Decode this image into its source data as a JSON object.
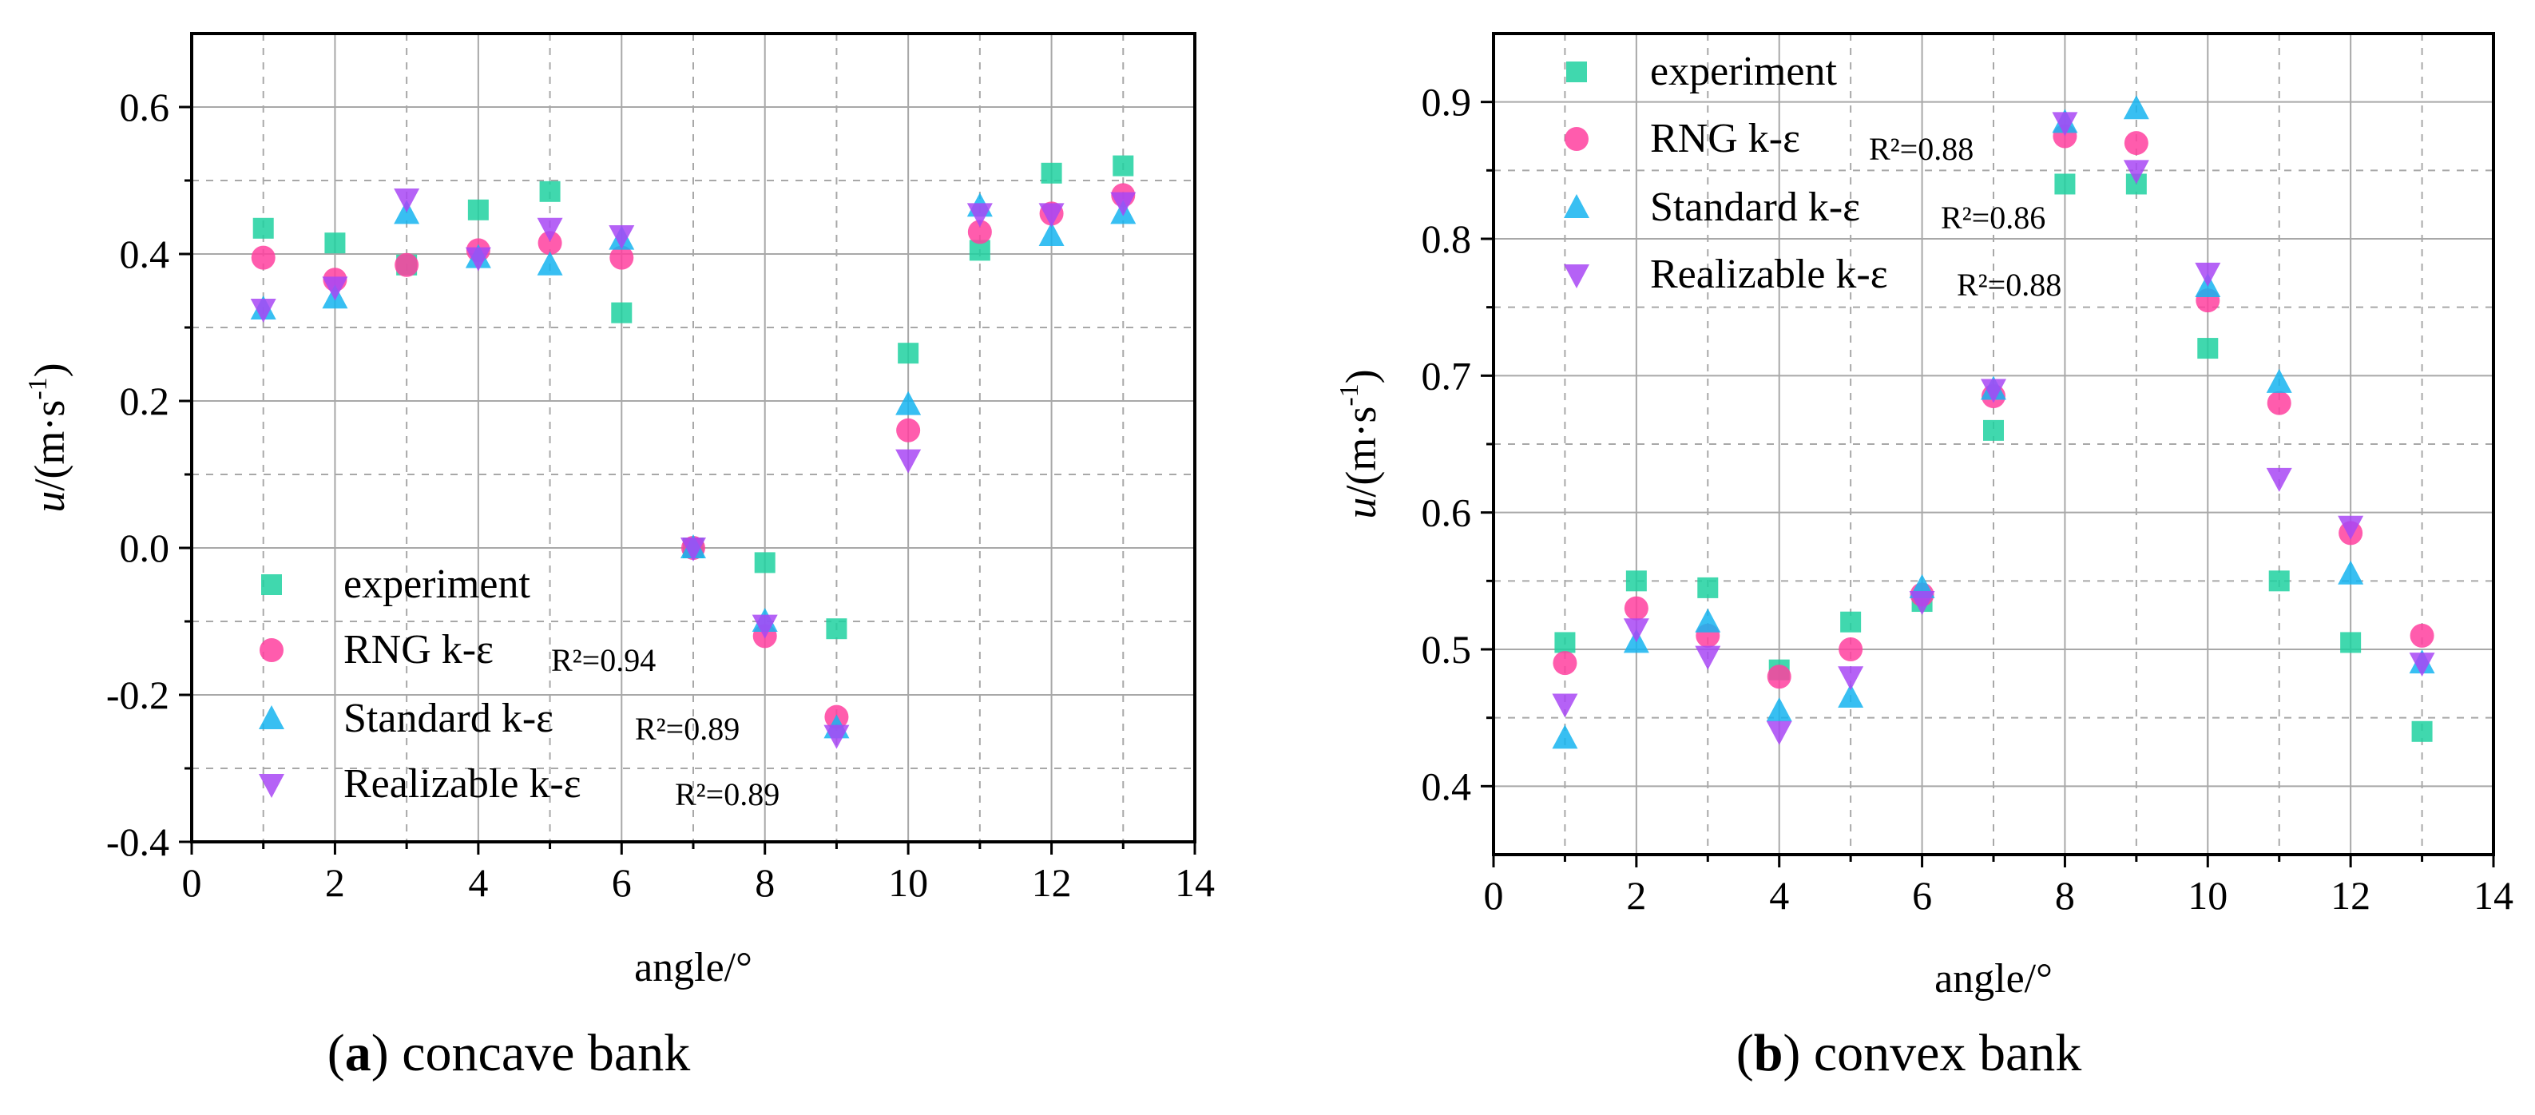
{
  "figure": {
    "panels": [
      {
        "caption_letter": "a",
        "caption_open": "(",
        "caption_close": ")",
        "caption_text": " concave bank"
      },
      {
        "caption_letter": "b",
        "caption_open": "(",
        "caption_close": ")",
        "caption_text": " convex bank"
      }
    ]
  },
  "colors": {
    "experiment": "#1fd1a0",
    "rng": "#ff3f9f",
    "standard": "#15b4f0",
    "realizable": "#a847f5",
    "grid": "#a8a8a8",
    "axis": "#000000"
  },
  "chart_data": [
    {
      "type": "scatter",
      "panel_caption": "(a) concave bank",
      "xlabel": "angle/°",
      "ylabel_main": "u",
      "ylabel_units": "/(m·s",
      "ylabel_sup": "-1",
      "ylabel_close": ")",
      "xlim": [
        0,
        14
      ],
      "ylim": [
        -0.4,
        0.7
      ],
      "xticks": [
        0,
        2,
        4,
        6,
        8,
        10,
        12,
        14
      ],
      "xtick_labels": [
        "0",
        "2",
        "4",
        "6",
        "8",
        "10",
        "12",
        "14"
      ],
      "yticks": [
        -0.4,
        -0.2,
        0.0,
        0.2,
        0.4,
        0.6
      ],
      "ytick_labels": [
        "-0.4",
        "-0.2",
        "0.0",
        "0.2",
        "0.4",
        "0.6"
      ],
      "legend_position": "bottom-left",
      "x": [
        1,
        2,
        3,
        4,
        5,
        6,
        7,
        8,
        9,
        10,
        11,
        12,
        13
      ],
      "series": [
        {
          "key": "experiment",
          "name": "experiment",
          "r2": "",
          "marker": "square",
          "values": [
            0.435,
            0.415,
            0.385,
            0.46,
            0.485,
            0.32,
            0.0,
            -0.02,
            -0.11,
            0.265,
            0.405,
            0.51,
            0.52
          ]
        },
        {
          "key": "rng",
          "name": "RNG k-ε",
          "r2": "R²=0.94",
          "marker": "circle",
          "values": [
            0.395,
            0.365,
            0.385,
            0.405,
            0.415,
            0.395,
            0.0,
            -0.12,
            -0.23,
            0.16,
            0.43,
            0.455,
            0.48
          ]
        },
        {
          "key": "standard",
          "name": "Standard k-ε",
          "r2": "R²=0.89",
          "marker": "triangle-up",
          "values": [
            0.325,
            0.34,
            0.455,
            0.395,
            0.385,
            0.42,
            0.0,
            -0.1,
            -0.245,
            0.195,
            0.465,
            0.425,
            0.455
          ]
        },
        {
          "key": "realizable",
          "name": "Realizable k-ε",
          "r2": "R²=0.89",
          "marker": "triangle-down",
          "values": [
            0.325,
            0.355,
            0.475,
            0.395,
            0.435,
            0.425,
            0.0,
            -0.105,
            -0.255,
            0.12,
            0.455,
            0.455,
            0.47
          ]
        }
      ]
    },
    {
      "type": "scatter",
      "panel_caption": "(b) convex bank",
      "xlabel": "angle/°",
      "ylabel_main": "u",
      "ylabel_units": "/(m·s",
      "ylabel_sup": "-1",
      "ylabel_close": ")",
      "xlim": [
        0,
        14
      ],
      "ylim": [
        0.35,
        0.95
      ],
      "xticks": [
        0,
        2,
        4,
        6,
        8,
        10,
        12,
        14
      ],
      "xtick_labels": [
        "0",
        "2",
        "4",
        "6",
        "8",
        "10",
        "12",
        "14"
      ],
      "yticks": [
        0.4,
        0.5,
        0.6,
        0.7,
        0.8,
        0.9
      ],
      "ytick_labels": [
        "0.4",
        "0.5",
        "0.6",
        "0.7",
        "0.8",
        "0.9"
      ],
      "legend_position": "top-left",
      "x": [
        1,
        2,
        3,
        4,
        5,
        6,
        7,
        8,
        9,
        10,
        11,
        12,
        13
      ],
      "series": [
        {
          "key": "experiment",
          "name": "experiment",
          "r2": "",
          "marker": "square",
          "values": [
            0.505,
            0.55,
            0.545,
            0.485,
            0.52,
            0.535,
            0.66,
            0.84,
            0.84,
            0.72,
            0.55,
            0.505,
            0.44
          ]
        },
        {
          "key": "rng",
          "name": "RNG k-ε",
          "r2": "R²=0.88",
          "marker": "circle",
          "values": [
            0.49,
            0.53,
            0.51,
            0.48,
            0.5,
            0.54,
            0.685,
            0.875,
            0.87,
            0.755,
            0.68,
            0.585,
            0.51
          ]
        },
        {
          "key": "standard",
          "name": "Standard k-ε",
          "r2": "R²=0.86",
          "marker": "triangle-up",
          "values": [
            0.435,
            0.505,
            0.52,
            0.455,
            0.465,
            0.545,
            0.69,
            0.885,
            0.895,
            0.765,
            0.695,
            0.555,
            0.49
          ]
        },
        {
          "key": "realizable",
          "name": "Realizable k-ε",
          "r2": "R²=0.88",
          "marker": "triangle-down",
          "values": [
            0.46,
            0.515,
            0.495,
            0.44,
            0.48,
            0.535,
            0.69,
            0.885,
            0.85,
            0.775,
            0.625,
            0.59,
            0.49
          ]
        }
      ]
    }
  ]
}
